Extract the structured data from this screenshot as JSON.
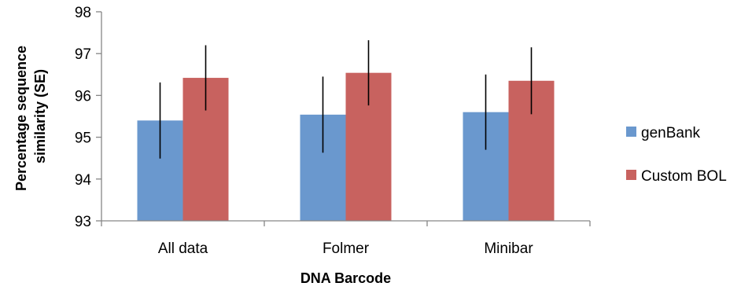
{
  "chart_data": {
    "type": "bar",
    "title": "",
    "xlabel": "DNA Barcode",
    "ylabel": "Percentage sequence similarity (SE)",
    "ylabel_lines": [
      "Percentage sequence",
      "similarity (SE)"
    ],
    "ylim": [
      93,
      98
    ],
    "yticks": [
      "93",
      "94",
      "95",
      "96",
      "97",
      "98"
    ],
    "categories": [
      "All data",
      "Folmer",
      "Minibar"
    ],
    "grid": false,
    "legend_position": "right",
    "series": [
      {
        "name": "genBank",
        "color": "#6a98ce",
        "values": [
          95.4,
          95.54,
          95.6
        ],
        "error": [
          0.91,
          0.91,
          0.9
        ]
      },
      {
        "name": "Custom BOL",
        "color": "#c8625f",
        "values": [
          96.42,
          96.54,
          96.35
        ],
        "error": [
          0.78,
          0.78,
          0.8
        ]
      }
    ]
  }
}
